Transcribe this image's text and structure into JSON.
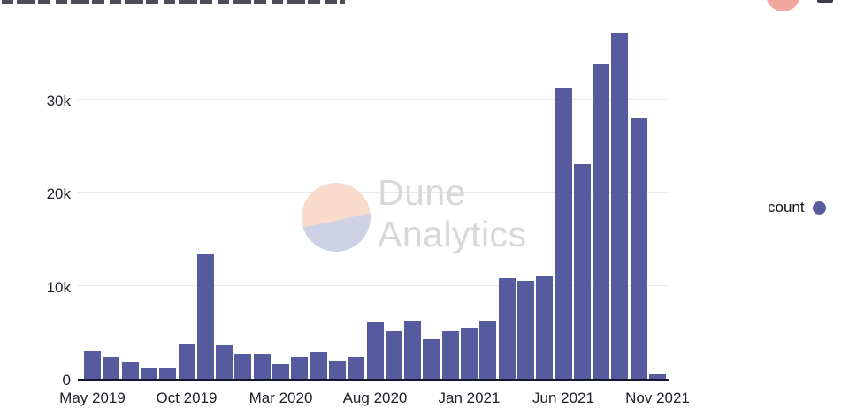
{
  "legend": {
    "label": "count"
  },
  "watermark": {
    "line1": "Dune",
    "line2": "Analytics"
  },
  "chart_data": {
    "type": "bar",
    "title": "",
    "xlabel": "",
    "ylabel": "",
    "series_name": "count",
    "bar_color": "#565b9f",
    "grid": "horizontal",
    "legend_position": "right",
    "ylim": [
      0,
      40000
    ],
    "x": [
      "May 2019",
      "Jun 2019",
      "Jul 2019",
      "Aug 2019",
      "Sep 2019",
      "Oct 2019",
      "Nov 2019",
      "Dec 2019",
      "Jan 2020",
      "Feb 2020",
      "Mar 2020",
      "Apr 2020",
      "May 2020",
      "Jun 2020",
      "Jul 2020",
      "Aug 2020",
      "Sep 2020",
      "Oct 2020",
      "Nov 2020",
      "Dec 2020",
      "Jan 2021",
      "Feb 2021",
      "Mar 2021",
      "Apr 2021",
      "May 2021",
      "Jun 2021",
      "Jul 2021",
      "Aug 2021",
      "Sep 2021",
      "Oct 2021",
      "Nov 2021"
    ],
    "values": [
      3000,
      2400,
      1800,
      1100,
      1100,
      3700,
      13400,
      3600,
      2700,
      2700,
      1600,
      2400,
      2900,
      1900,
      2400,
      6100,
      5100,
      6300,
      4300,
      5100,
      5500,
      6200,
      10800,
      10500,
      11000,
      31200,
      23000,
      33800,
      37200,
      28000,
      500
    ],
    "xticks": [
      "May 2019",
      "Oct 2019",
      "Mar 2020",
      "Aug 2020",
      "Jan 2021",
      "Jun 2021",
      "Nov 2021"
    ],
    "yticks": [
      {
        "label": "0",
        "value": 0
      },
      {
        "label": "10k",
        "value": 10000
      },
      {
        "label": "20k",
        "value": 20000
      },
      {
        "label": "30k",
        "value": 30000
      }
    ]
  }
}
